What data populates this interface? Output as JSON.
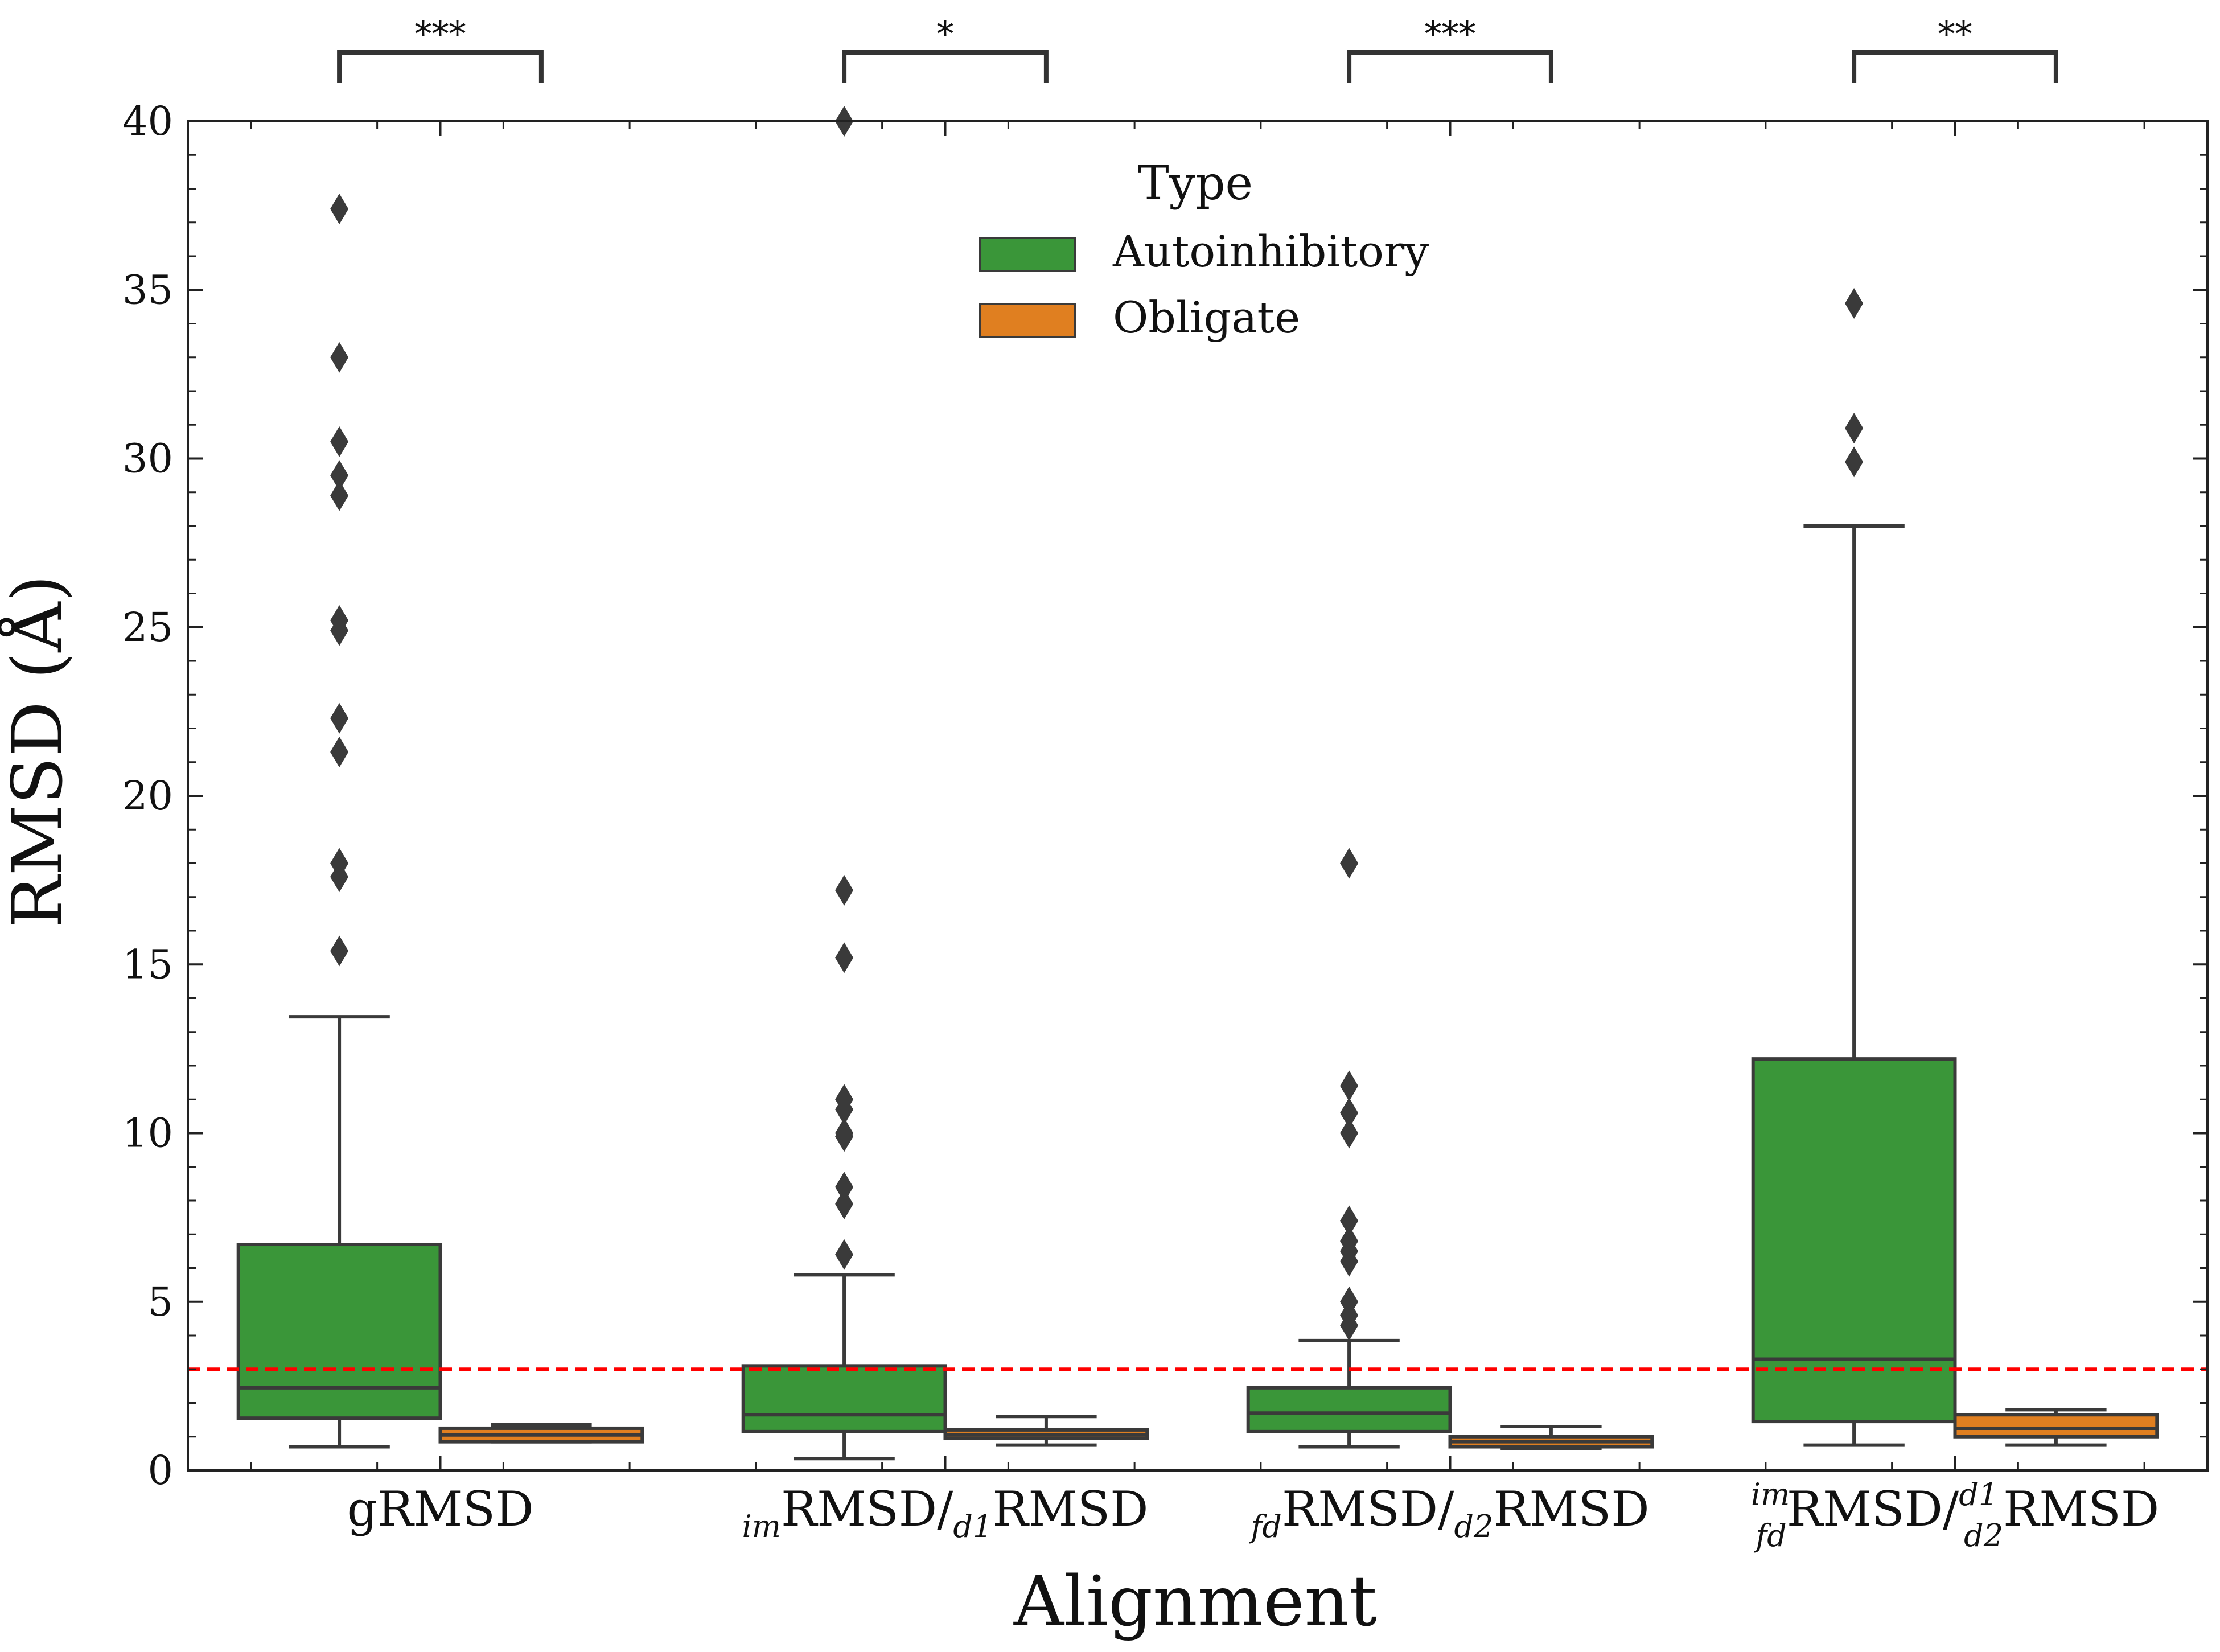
{
  "chart_data": {
    "type": "box",
    "xlabel": "Alignment",
    "ylabel": "RMSD (Å)",
    "ylim": [
      0,
      40
    ],
    "yticks": [
      0,
      5,
      10,
      15,
      20,
      25,
      30,
      35,
      40
    ],
    "categories": [
      {
        "pre_sub": "",
        "pre_sup": "",
        "main": "gRMSD",
        "mid_sub": "",
        "mid_sup": "",
        "tail": ""
      },
      {
        "pre_sub": "im",
        "pre_sup": "",
        "main": "RMSD/",
        "mid_sub": "d1",
        "mid_sup": "",
        "tail": "RMSD"
      },
      {
        "pre_sub": "fd",
        "pre_sup": "",
        "main": "RMSD/",
        "mid_sub": "d2",
        "mid_sup": "",
        "tail": "RMSD"
      },
      {
        "pre_sub": "fd",
        "pre_sup": "im",
        "main": "RMSD/",
        "mid_sub": "d2",
        "mid_sup": "d1",
        "tail": "RMSD"
      }
    ],
    "legend": {
      "title": "Type",
      "position": "top-center"
    },
    "series": [
      {
        "name": "Autoinhibitory",
        "color": "#3a9639",
        "boxes": [
          {
            "whislo": 0.7,
            "q1": 1.55,
            "med": 2.45,
            "q3": 6.7,
            "whishi": 13.45,
            "fliers": [
              15.4,
              17.6,
              18.0,
              21.3,
              22.3,
              24.9,
              25.2,
              28.9,
              29.5,
              30.5,
              33.0,
              37.4
            ]
          },
          {
            "whislo": 0.35,
            "q1": 1.15,
            "med": 1.65,
            "q3": 3.1,
            "whishi": 5.8,
            "fliers": [
              6.4,
              7.9,
              8.4,
              9.9,
              10.0,
              10.7,
              11.0,
              15.2,
              17.2,
              40.0
            ]
          },
          {
            "whislo": 0.7,
            "q1": 1.15,
            "med": 1.7,
            "q3": 2.45,
            "whishi": 3.85,
            "fliers": [
              4.3,
              4.6,
              5.0,
              6.2,
              6.5,
              6.8,
              7.4,
              10.0,
              10.6,
              11.4,
              18.0
            ]
          },
          {
            "whislo": 0.75,
            "q1": 1.45,
            "med": 3.3,
            "q3": 12.2,
            "whishi": 28.0,
            "fliers": [
              29.9,
              30.9,
              34.6
            ]
          }
        ]
      },
      {
        "name": "Obligate",
        "color": "#e07f20",
        "boxes": [
          {
            "whislo": 0.85,
            "q1": 0.85,
            "med": 1.05,
            "q3": 1.25,
            "whishi": 1.35,
            "fliers": []
          },
          {
            "whislo": 0.75,
            "q1": 0.95,
            "med": 1.05,
            "q3": 1.2,
            "whishi": 1.6,
            "fliers": []
          },
          {
            "whislo": 0.65,
            "q1": 0.7,
            "med": 0.85,
            "q3": 1.0,
            "whishi": 1.3,
            "fliers": []
          },
          {
            "whislo": 0.75,
            "q1": 1.0,
            "med": 1.25,
            "q3": 1.65,
            "whishi": 1.8,
            "fliers": []
          }
        ]
      }
    ],
    "threshold": {
      "value": 3,
      "color": "#ff0000",
      "style": "dashed"
    },
    "significance": [
      "***",
      "*",
      "***",
      "**"
    ]
  }
}
